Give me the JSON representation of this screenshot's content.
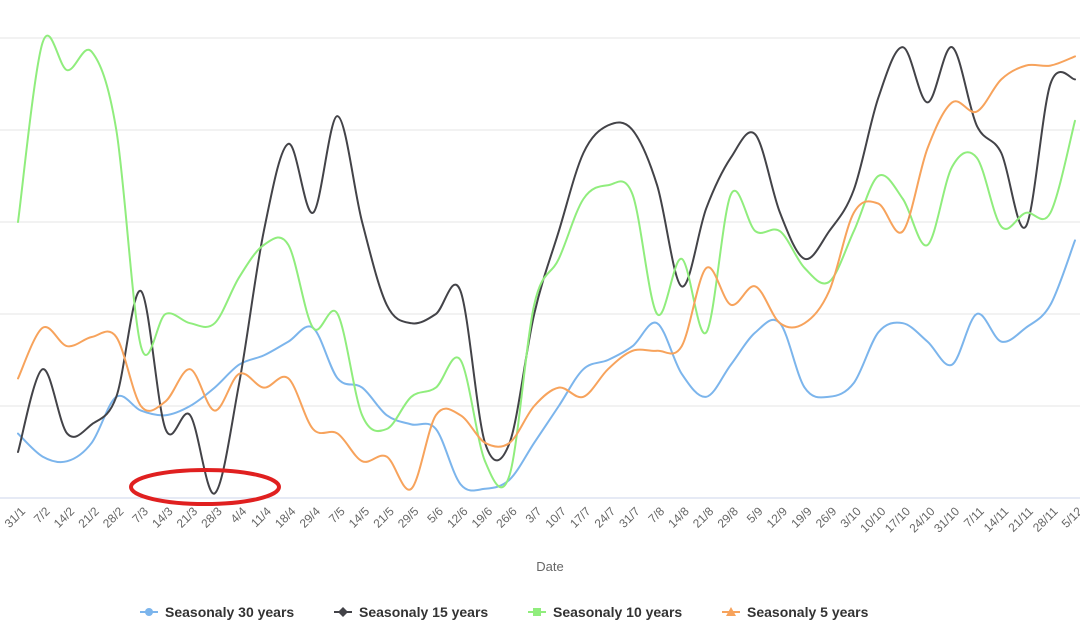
{
  "chart_data": {
    "type": "line",
    "xlabel": "Date",
    "categories": [
      "31/1",
      "7/2",
      "14/2",
      "21/2",
      "28/2",
      "7/3",
      "14/3",
      "21/3",
      "28/3",
      "4/4",
      "11/4",
      "18/4",
      "29/4",
      "7/5",
      "14/5",
      "21/5",
      "29/5",
      "5/6",
      "12/6",
      "19/6",
      "26/6",
      "3/7",
      "10/7",
      "17/7",
      "24/7",
      "31/7",
      "7/8",
      "14/8",
      "21/8",
      "29/8",
      "5/9",
      "12/9",
      "19/9",
      "26/9",
      "3/10",
      "10/10",
      "17/10",
      "24/10",
      "31/10",
      "7/11",
      "14/11",
      "21/11",
      "28/11",
      "5/12"
    ],
    "ylim": [
      0,
      100
    ],
    "grid": true,
    "legend_position": "bottom",
    "series": [
      {
        "name": "Seasonaly 30 years",
        "color": "#7cb5ec",
        "marker": "circle",
        "values": [
          14,
          9,
          8,
          12,
          22,
          19,
          18,
          20,
          24,
          29,
          31,
          34,
          37,
          26,
          24,
          18,
          16,
          15,
          3,
          2,
          4,
          12,
          20,
          28,
          30,
          33,
          38,
          27,
          22,
          29,
          36,
          38,
          24,
          22,
          25,
          36,
          38,
          34,
          29,
          40,
          34,
          37,
          42,
          56
        ]
      },
      {
        "name": "Seasonaly 15 years",
        "color": "#434348",
        "marker": "diamond",
        "values": [
          10,
          28,
          14,
          16,
          22,
          45,
          15,
          18,
          1,
          25,
          58,
          77,
          62,
          83,
          60,
          42,
          38,
          40,
          45,
          12,
          12,
          40,
          58,
          75,
          81,
          80,
          68,
          46,
          63,
          74,
          79,
          62,
          52,
          58,
          67,
          87,
          98,
          86,
          98,
          81,
          75,
          59,
          90,
          91
        ]
      },
      {
        "name": "Seasonaly 10 years",
        "color": "#90ed7d",
        "marker": "square",
        "values": [
          60,
          99,
          93,
          97,
          80,
          33,
          40,
          38,
          38,
          48,
          55,
          55,
          37,
          40,
          18,
          15,
          22,
          24,
          30,
          8,
          5,
          42,
          52,
          65,
          68,
          66,
          40,
          52,
          36,
          66,
          58,
          58,
          50,
          47,
          58,
          70,
          65,
          55,
          72,
          74,
          59,
          62,
          62,
          82
        ]
      },
      {
        "name": "Seasonaly 5 years",
        "color": "#f7a35c",
        "marker": "triangle",
        "values": [
          26,
          37,
          33,
          35,
          35,
          20,
          21,
          28,
          19,
          27,
          24,
          26,
          15,
          14,
          8,
          9,
          2,
          18,
          18,
          12,
          12,
          20,
          24,
          22,
          28,
          32,
          32,
          33,
          50,
          42,
          46,
          38,
          38,
          45,
          62,
          64,
          58,
          76,
          86,
          84,
          91,
          94,
          94,
          96
        ]
      }
    ]
  }
}
